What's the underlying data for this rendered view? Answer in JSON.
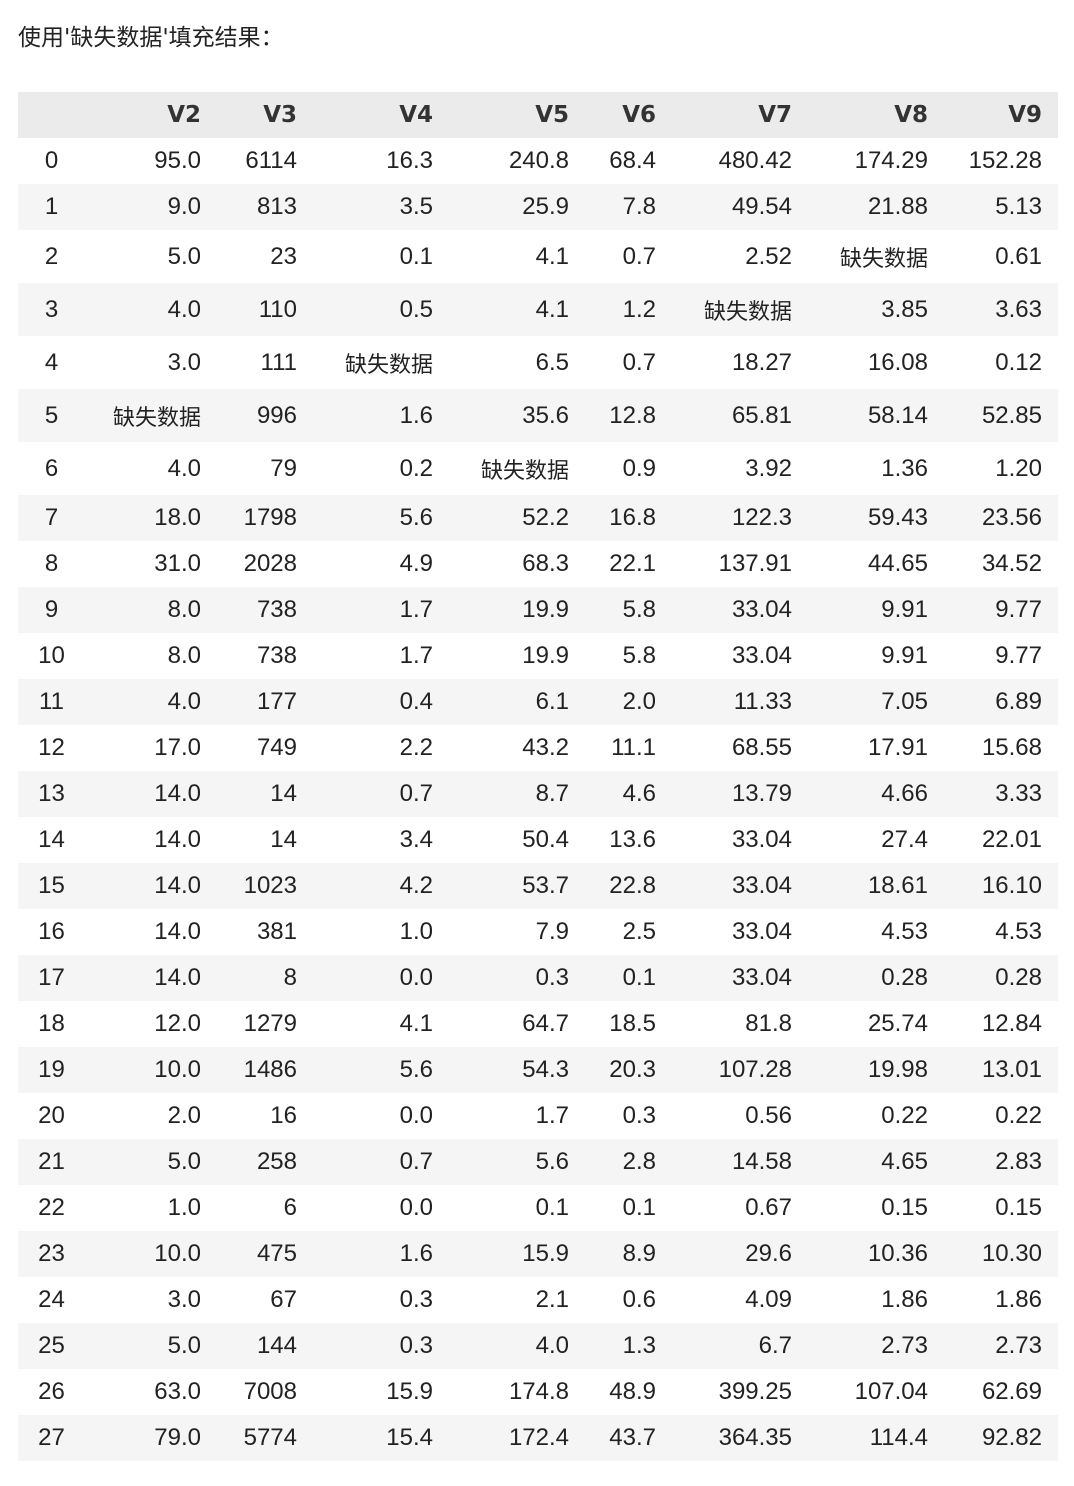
{
  "caption": "使用'缺失数据'填充结果：",
  "table": {
    "columns": [
      "",
      "V2",
      "V3",
      "V4",
      "V5",
      "V6",
      "V7",
      "V8",
      "V9"
    ],
    "rows": [
      [
        "0",
        "95.0",
        "6114",
        "16.3",
        "240.8",
        "68.4",
        "480.42",
        "174.29",
        "152.28"
      ],
      [
        "1",
        "9.0",
        "813",
        "3.5",
        "25.9",
        "7.8",
        "49.54",
        "21.88",
        "5.13"
      ],
      [
        "2",
        "5.0",
        "23",
        "0.1",
        "4.1",
        "0.7",
        "2.52",
        "缺失数据",
        "0.61"
      ],
      [
        "3",
        "4.0",
        "110",
        "0.5",
        "4.1",
        "1.2",
        "缺失数据",
        "3.85",
        "3.63"
      ],
      [
        "4",
        "3.0",
        "111",
        "缺失数据",
        "6.5",
        "0.7",
        "18.27",
        "16.08",
        "0.12"
      ],
      [
        "5",
        "缺失数据",
        "996",
        "1.6",
        "35.6",
        "12.8",
        "65.81",
        "58.14",
        "52.85"
      ],
      [
        "6",
        "4.0",
        "79",
        "0.2",
        "缺失数据",
        "0.9",
        "3.92",
        "1.36",
        "1.20"
      ],
      [
        "7",
        "18.0",
        "1798",
        "5.6",
        "52.2",
        "16.8",
        "122.3",
        "59.43",
        "23.56"
      ],
      [
        "8",
        "31.0",
        "2028",
        "4.9",
        "68.3",
        "22.1",
        "137.91",
        "44.65",
        "34.52"
      ],
      [
        "9",
        "8.0",
        "738",
        "1.7",
        "19.9",
        "5.8",
        "33.04",
        "9.91",
        "9.77"
      ],
      [
        "10",
        "8.0",
        "738",
        "1.7",
        "19.9",
        "5.8",
        "33.04",
        "9.91",
        "9.77"
      ],
      [
        "11",
        "4.0",
        "177",
        "0.4",
        "6.1",
        "2.0",
        "11.33",
        "7.05",
        "6.89"
      ],
      [
        "12",
        "17.0",
        "749",
        "2.2",
        "43.2",
        "11.1",
        "68.55",
        "17.91",
        "15.68"
      ],
      [
        "13",
        "14.0",
        "14",
        "0.7",
        "8.7",
        "4.6",
        "13.79",
        "4.66",
        "3.33"
      ],
      [
        "14",
        "14.0",
        "14",
        "3.4",
        "50.4",
        "13.6",
        "33.04",
        "27.4",
        "22.01"
      ],
      [
        "15",
        "14.0",
        "1023",
        "4.2",
        "53.7",
        "22.8",
        "33.04",
        "18.61",
        "16.10"
      ],
      [
        "16",
        "14.0",
        "381",
        "1.0",
        "7.9",
        "2.5",
        "33.04",
        "4.53",
        "4.53"
      ],
      [
        "17",
        "14.0",
        "8",
        "0.0",
        "0.3",
        "0.1",
        "33.04",
        "0.28",
        "0.28"
      ],
      [
        "18",
        "12.0",
        "1279",
        "4.1",
        "64.7",
        "18.5",
        "81.8",
        "25.74",
        "12.84"
      ],
      [
        "19",
        "10.0",
        "1486",
        "5.6",
        "54.3",
        "20.3",
        "107.28",
        "19.98",
        "13.01"
      ],
      [
        "20",
        "2.0",
        "16",
        "0.0",
        "1.7",
        "0.3",
        "0.56",
        "0.22",
        "0.22"
      ],
      [
        "21",
        "5.0",
        "258",
        "0.7",
        "5.6",
        "2.8",
        "14.58",
        "4.65",
        "2.83"
      ],
      [
        "22",
        "1.0",
        "6",
        "0.0",
        "0.1",
        "0.1",
        "0.67",
        "0.15",
        "0.15"
      ],
      [
        "23",
        "10.0",
        "475",
        "1.6",
        "15.9",
        "8.9",
        "29.6",
        "10.36",
        "10.30"
      ],
      [
        "24",
        "3.0",
        "67",
        "0.3",
        "2.1",
        "0.6",
        "4.09",
        "1.86",
        "1.86"
      ],
      [
        "25",
        "5.0",
        "144",
        "0.3",
        "4.0",
        "1.3",
        "6.7",
        "2.73",
        "2.73"
      ],
      [
        "26",
        "63.0",
        "7008",
        "15.9",
        "174.8",
        "48.9",
        "399.25",
        "107.04",
        "62.69"
      ],
      [
        "27",
        "79.0",
        "5774",
        "15.4",
        "172.4",
        "43.7",
        "364.35",
        "114.4",
        "92.82"
      ]
    ]
  }
}
